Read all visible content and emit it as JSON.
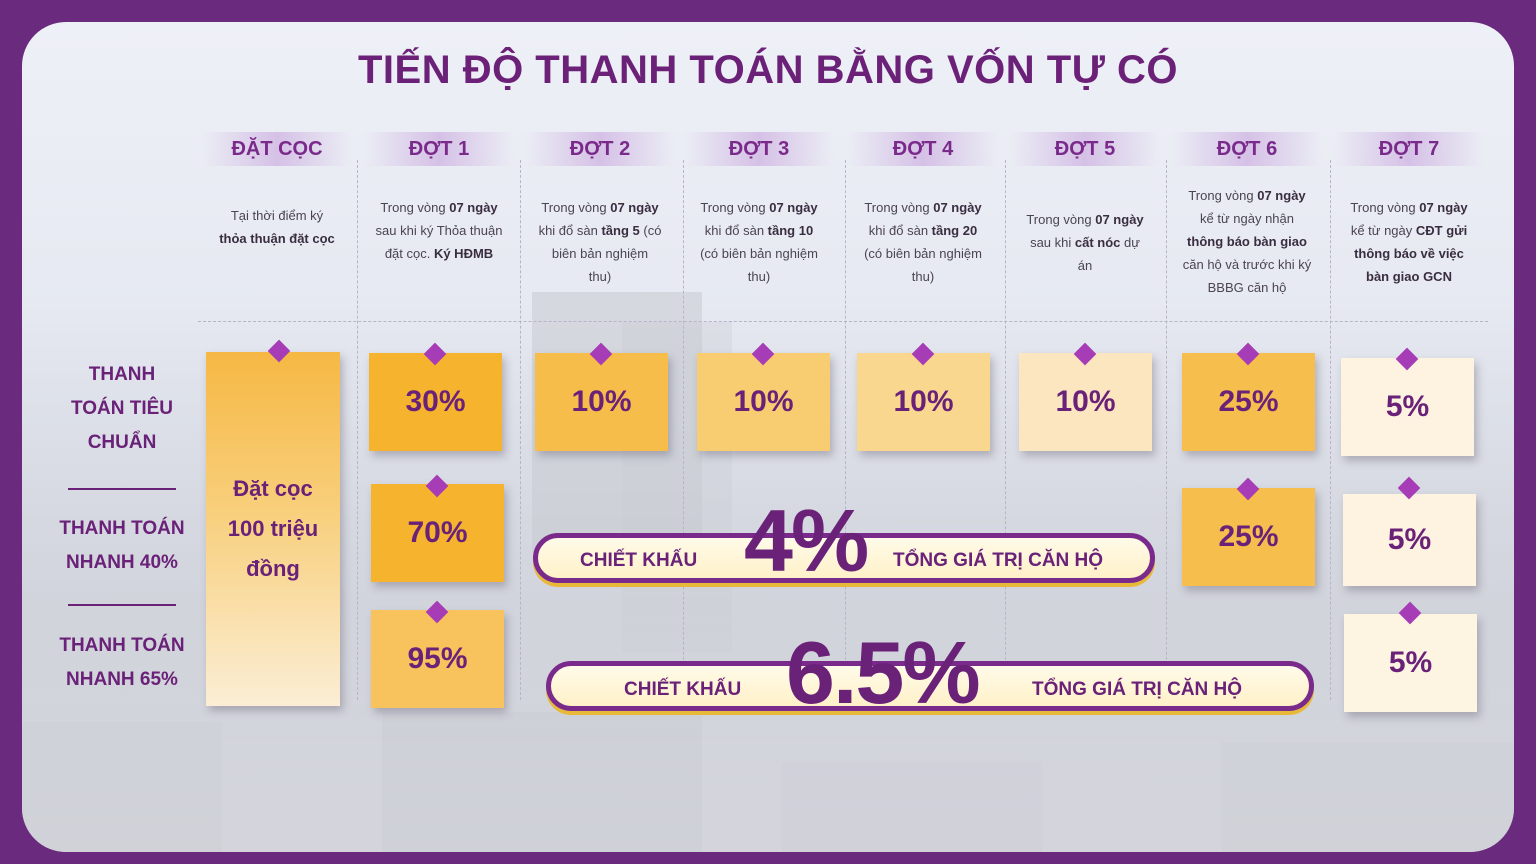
{
  "title": "TIẾN ĐỘ THANH TOÁN BẰNG VỐN TỰ CÓ",
  "columns": [
    {
      "head": "ĐẶT CỌC",
      "desc": [
        "Tại thời điểm ký",
        "<b>thỏa thuận đặt cọc</b>"
      ]
    },
    {
      "head": "ĐỢT 1",
      "desc": [
        "Trong vòng <b>07 ngày</b>",
        "sau khi ký Thỏa thuận",
        "đặt cọc. <b>Ký HĐMB</b>"
      ]
    },
    {
      "head": "ĐỢT 2",
      "desc": [
        "Trong vòng <b>07 ngày</b>",
        "khi đổ sàn <b>tầng 5</b> (có",
        "biên bản nghiệm",
        "thu)"
      ]
    },
    {
      "head": "ĐỢT 3",
      "desc": [
        "Trong vòng <b>07 ngày</b>",
        "khi đổ sàn <b>tầng 10</b>",
        "(có biên bản nghiệm",
        "thu)"
      ]
    },
    {
      "head": "ĐỢT 4",
      "desc": [
        "Trong vòng <b>07 ngày</b>",
        "khi đổ sàn <b>tầng 20</b>",
        "(có biên bản nghiệm",
        "thu)"
      ]
    },
    {
      "head": "ĐỢT 5",
      "desc": [
        "Trong vòng <b>07 ngày</b>",
        "sau khi <b>cất nóc</b> dự",
        "án"
      ]
    },
    {
      "head": "ĐỢT 6",
      "desc": [
        "Trong vòng <b>07 ngày</b>",
        "kể từ ngày nhận",
        "<b>thông báo bàn giao</b>",
        "căn hộ và trước khi ký",
        "BBBG căn hộ"
      ]
    },
    {
      "head": "ĐỢT 7",
      "desc": [
        "Trong vòng <b>07 ngày</b>",
        "kể từ ngày <b>CĐT gửi</b>",
        "<b>thông báo về việc</b>",
        "<b>bàn giao GCN</b>"
      ]
    }
  ],
  "rows": {
    "standard": [
      "THANH",
      "TOÁN TIÊU",
      "CHUẨN"
    ],
    "fast40": [
      "THANH TOÁN",
      "NHANH 40%"
    ],
    "fast65": [
      "THANH TOÁN",
      "NHANH 65%"
    ]
  },
  "deposit": [
    "Đặt cọc",
    "100 triệu",
    "đồng"
  ],
  "standard_values": [
    "30%",
    "10%",
    "10%",
    "10%",
    "10%",
    "25%",
    "5%"
  ],
  "fast40_values": {
    "dot1": "70%",
    "dot6": "25%",
    "dot7": "5%"
  },
  "fast65_values": {
    "dot1": "95%",
    "dot7": "5%"
  },
  "discount40": {
    "left": "CHIẾT KHẤU",
    "value": "4%",
    "right": "TỔNG GIÁ TRỊ CĂN HỘ"
  },
  "discount65": {
    "left": "CHIẾT KHẤU",
    "value": "6.5%",
    "right": "TỔNG GIÁ TRỊ CĂN HỘ"
  },
  "colors": {
    "frame": "#6a2a7e",
    "text": "#6a2178",
    "accent": "#a63cb6"
  }
}
